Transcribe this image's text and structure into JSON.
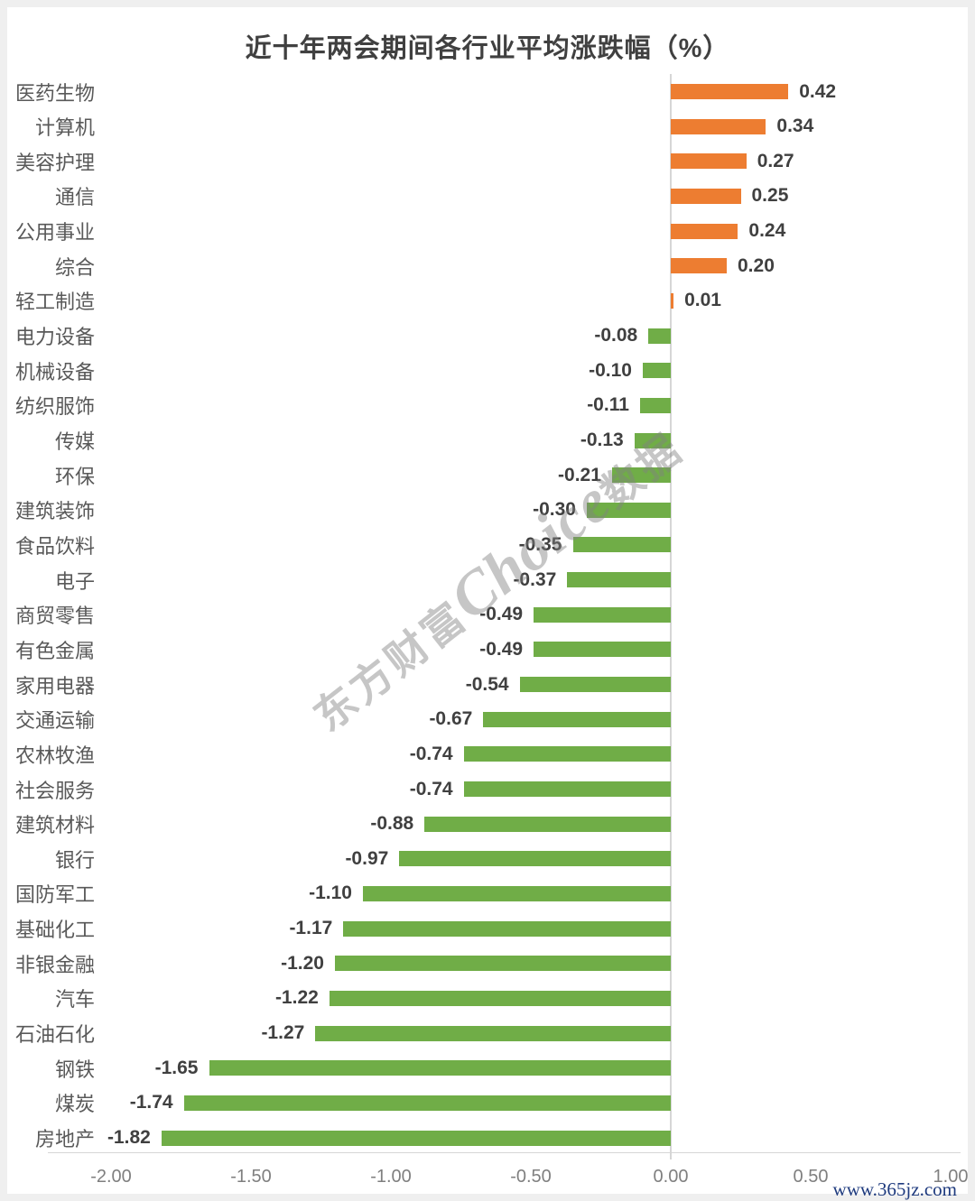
{
  "title": "近十年两会期间各行业平均涨跌幅（%）",
  "watermark": {
    "prefix": "东方财富",
    "brand": "Choice",
    "suffix": "数据"
  },
  "footer": {
    "site": "www.365jz.com"
  },
  "colors": {
    "positive_bar": "#ED7D31",
    "negative_bar": "#70AD47",
    "axis_line": "#D6D6D6",
    "category_text": "#595959",
    "value_text": "#404040",
    "tick_text": "#7F7F7F",
    "title_text": "#404040",
    "credit_text": "#1E3A7E"
  },
  "chart_data": {
    "type": "bar",
    "orientation": "horizontal",
    "title": "近十年两会期间各行业平均涨跌幅（%）",
    "xlabel": "",
    "ylabel": "",
    "xlim": [
      -2.0,
      1.0
    ],
    "xticks": [
      -2.0,
      -1.5,
      -1.0,
      -0.5,
      0.0,
      0.5,
      1.0
    ],
    "grid": false,
    "legend": false,
    "categories": [
      "医药生物",
      "计算机",
      "美容护理",
      "通信",
      "公用事业",
      "综合",
      "轻工制造",
      "电力设备",
      "机械设备",
      "纺织服饰",
      "传媒",
      "环保",
      "建筑装饰",
      "食品饮料",
      "电子",
      "商贸零售",
      "有色金属",
      "家用电器",
      "交通运输",
      "农林牧渔",
      "社会服务",
      "建筑材料",
      "银行",
      "国防军工",
      "基础化工",
      "非银金融",
      "汽车",
      "石油石化",
      "钢铁",
      "煤炭",
      "房地产"
    ],
    "values": [
      0.42,
      0.34,
      0.27,
      0.25,
      0.24,
      0.2,
      0.01,
      -0.08,
      -0.1,
      -0.11,
      -0.13,
      -0.21,
      -0.3,
      -0.35,
      -0.37,
      -0.49,
      -0.49,
      -0.54,
      -0.67,
      -0.74,
      -0.74,
      -0.88,
      -0.97,
      -1.1,
      -1.17,
      -1.2,
      -1.22,
      -1.27,
      -1.65,
      -1.74,
      -1.82
    ]
  }
}
